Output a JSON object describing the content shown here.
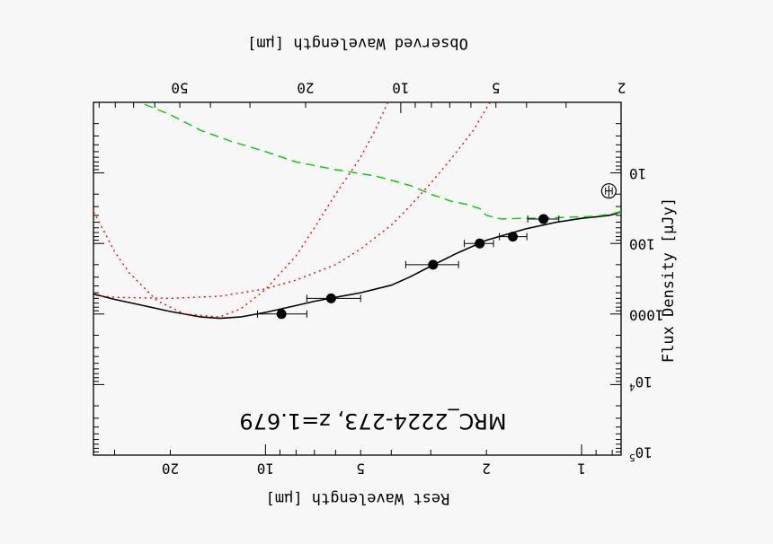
{
  "chart_data": {
    "type": "line",
    "orientation": "rotated-180",
    "title": "MRC_2224-273, z=1.679",
    "xlabel": "Rest Wavelength [μm]",
    "x2label": "Observed Wavelength [μm]",
    "ylabel": "Flux Density [μJy]",
    "x_scale": "log",
    "y_scale": "log",
    "xlim": [
      0.75,
      35
    ],
    "ylim": [
      1,
      100000
    ],
    "x_ticks": [
      {
        "value": 1,
        "label": "1"
      },
      {
        "value": 2,
        "label": "2"
      },
      {
        "value": 5,
        "label": "5"
      },
      {
        "value": 10,
        "label": "10"
      },
      {
        "value": 20,
        "label": "20"
      }
    ],
    "x2_ticks": [
      {
        "value": 2,
        "label": "2"
      },
      {
        "value": 5,
        "label": "5"
      },
      {
        "value": 10,
        "label": "10"
      },
      {
        "value": 20,
        "label": "20"
      },
      {
        "value": 50,
        "label": "50"
      }
    ],
    "y_ticks": [
      {
        "value": 10,
        "label": "10",
        "sup": ""
      },
      {
        "value": 100,
        "label": "100",
        "sup": ""
      },
      {
        "value": 1000,
        "label": "1000",
        "sup": ""
      },
      {
        "value": 10000,
        "label": "10",
        "sup": "4"
      },
      {
        "value": 100000,
        "label": "10",
        "sup": "5"
      }
    ],
    "redshift": 1.679,
    "points": [
      {
        "x": 1.32,
        "y": 45,
        "xerr": [
          1.18,
          1.48
        ],
        "type": "filled"
      },
      {
        "x": 1.65,
        "y": 80,
        "xerr": [
          1.49,
          1.82
        ],
        "type": "filled"
      },
      {
        "x": 2.1,
        "y": 100,
        "xerr": [
          1.9,
          2.35
        ],
        "type": "filled"
      },
      {
        "x": 2.95,
        "y": 200,
        "xerr": [
          2.45,
          3.6
        ],
        "type": "filled"
      },
      {
        "x": 6.2,
        "y": 600,
        "xerr": [
          5.0,
          7.4
        ],
        "type": "filled"
      },
      {
        "x": 8.9,
        "y": 1000,
        "xerr": [
          7.4,
          10.6
        ],
        "type": "filled"
      },
      {
        "x": 0.82,
        "y": 18,
        "xerr": [
          0.8,
          0.84
        ],
        "yerr": [
          15,
          22
        ],
        "type": "open"
      }
    ],
    "series": [
      {
        "style": "solid",
        "color": "#000000",
        "x": [
          0.75,
          0.78,
          0.82,
          0.9,
          1.0,
          1.2,
          1.5,
          2.0,
          2.5,
          3.0,
          3.5,
          4.0,
          5.0,
          6.0,
          7.0,
          8.0,
          10.0,
          12.0,
          14.0,
          16.0,
          20.0,
          25.0,
          30.0,
          35.0
        ],
        "y": [
          35,
          38,
          40,
          42,
          44,
          50,
          62,
          90,
          140,
          210,
          300,
          390,
          500,
          580,
          660,
          760,
          950,
          1100,
          1150,
          1100,
          920,
          740,
          620,
          520
        ]
      },
      {
        "style": "dashed",
        "color": "#00cc00",
        "x": [
          0.75,
          0.8,
          0.9,
          1.0,
          1.2,
          1.5,
          1.8,
          2.0,
          2.1,
          2.3,
          2.6,
          3.0,
          3.5,
          4.5,
          6.0,
          8.0,
          10.0,
          13.0,
          16.0,
          20.0,
          25.0
        ],
        "y": [
          35,
          38,
          41,
          42,
          43,
          44,
          45,
          40,
          32,
          28,
          25,
          20,
          15,
          11,
          9,
          7,
          5,
          3.5,
          2.5,
          1.5,
          1.0
        ]
      },
      {
        "style": "dotted",
        "color": "#ff0000",
        "x": [
          1.95,
          2.2,
          2.6,
          3.0,
          3.5,
          4.0,
          5.0,
          6.0,
          8.0,
          10.0,
          14.0,
          20.0,
          30.0,
          35.0
        ],
        "y": [
          1.0,
          2.5,
          6.5,
          14,
          30,
          55,
          120,
          200,
          330,
          440,
          560,
          600,
          580,
          540
        ]
      },
      {
        "style": "dotted",
        "color": "#ff0000",
        "x": [
          4.1,
          4.5,
          5.0,
          6.0,
          7.0,
          8.0,
          10.0,
          12.0,
          14.0,
          18.0,
          22.0,
          27.0,
          30.0,
          35.0
        ],
        "y": [
          1.0,
          2.5,
          6.0,
          20,
          60,
          150,
          450,
          850,
          1100,
          1000,
          650,
          260,
          130,
          35
        ]
      }
    ]
  }
}
